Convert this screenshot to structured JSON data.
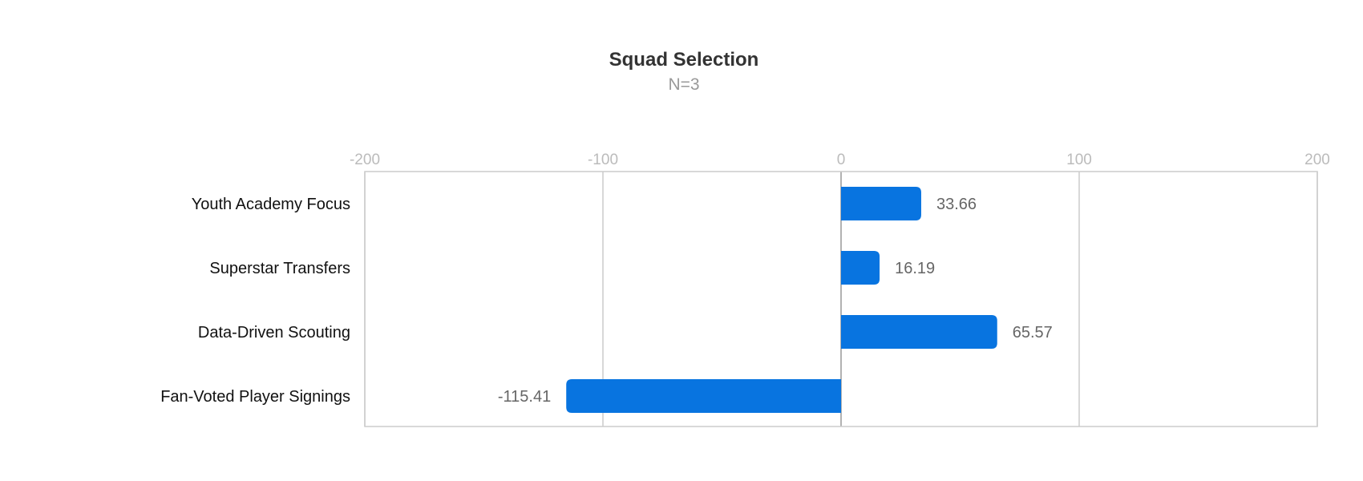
{
  "chart_data": {
    "type": "bar",
    "orientation": "horizontal",
    "title": "Squad Selection",
    "subtitle": "N=3",
    "categories": [
      "Youth Academy Focus",
      "Superstar Transfers",
      "Data-Driven Scouting",
      "Fan-Voted Player Signings"
    ],
    "values": [
      33.66,
      16.19,
      65.57,
      -115.41
    ],
    "value_labels": [
      "33.66",
      "16.19",
      "65.57",
      "-115.41"
    ],
    "xlim": [
      -200,
      200
    ],
    "xticks": [
      -200,
      -100,
      0,
      100,
      200
    ],
    "tick_labels": [
      "-200",
      "-100",
      "0",
      "100",
      "200"
    ],
    "xaxis_position": "top",
    "grid": true,
    "legend": "none",
    "bar_color": "#0874e0",
    "grid_color": "#cccccc",
    "zero_line_color": "#999999"
  }
}
